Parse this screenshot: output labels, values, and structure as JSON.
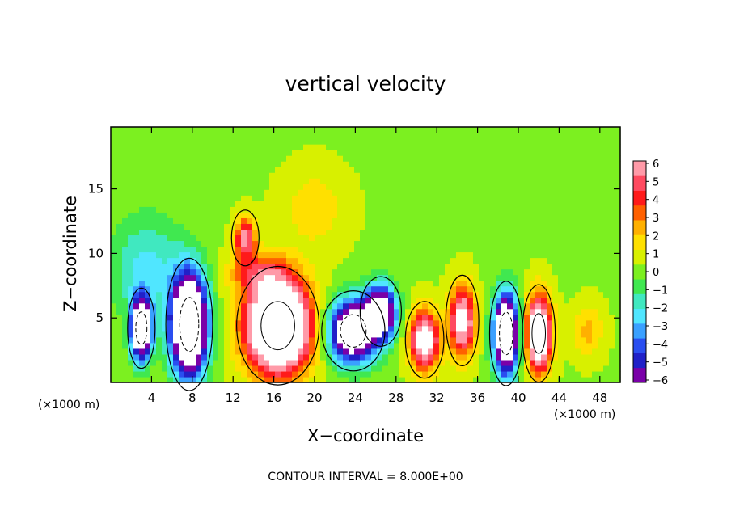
{
  "chart_data": {
    "type": "heatmap",
    "title": "vertical velocity",
    "xlabel": "X−coordinate",
    "ylabel": "Z−coordinate",
    "x_unit_left": "(×1000 m)",
    "x_unit_right": "(×1000 m)",
    "footer": "CONTOUR INTERVAL = 8.000E+00",
    "xlim": [
      0,
      50
    ],
    "ylim": [
      0,
      19.8
    ],
    "x_ticks": [
      4,
      8,
      12,
      16,
      20,
      24,
      28,
      32,
      36,
      40,
      44,
      48
    ],
    "y_ticks": [
      5,
      10,
      15
    ],
    "colorbar": {
      "ticks": [
        "6",
        "5",
        "4",
        "3",
        "2",
        "1",
        "0",
        "−1",
        "−2",
        "−3",
        "−4",
        "−5",
        "−6"
      ],
      "range": [
        -6,
        6
      ],
      "colors": [
        "#7a00a8",
        "#2020c8",
        "#2a4ef0",
        "#3aa0ff",
        "#50e6ff",
        "#40e8c0",
        "#40e850",
        "#7cf020",
        "#d8f000",
        "#ffe000",
        "#ffb000",
        "#ff6000",
        "#ff1a1a",
        "#ff4a60",
        "#ff9aa8"
      ]
    },
    "background_value": 0.3,
    "cells": [
      {
        "x": 3,
        "z": 4.2,
        "value": -12,
        "sx": 1.0,
        "sz": 2.3
      },
      {
        "x": 7.7,
        "z": 4.5,
        "value": -14,
        "sx": 1.7,
        "sz": 3.8
      },
      {
        "x": 3.5,
        "z": 9.0,
        "value": -2.5,
        "sx": 3.5,
        "sz": 4.0
      },
      {
        "x": 16.4,
        "z": 4.4,
        "value": 14,
        "sx": 3.0,
        "sz": 3.4
      },
      {
        "x": 13.2,
        "z": 11.2,
        "value": 5.5,
        "sx": 1.0,
        "sz": 1.6
      },
      {
        "x": 20.0,
        "z": 13.5,
        "value": 1.5,
        "sx": 3.0,
        "sz": 3.0
      },
      {
        "x": 23.8,
        "z": 4.0,
        "value": -11,
        "sx": 2.3,
        "sz": 2.3
      },
      {
        "x": 26.5,
        "z": 5.5,
        "value": -9,
        "sx": 1.5,
        "sz": 2.0
      },
      {
        "x": 30.8,
        "z": 3.3,
        "value": 8,
        "sx": 1.4,
        "sz": 2.2
      },
      {
        "x": 34.5,
        "z": 4.8,
        "value": 7.5,
        "sx": 1.2,
        "sz": 2.6
      },
      {
        "x": 38.8,
        "z": 3.8,
        "value": -12,
        "sx": 1.2,
        "sz": 3.0
      },
      {
        "x": 42.0,
        "z": 3.8,
        "value": 10,
        "sx": 1.2,
        "sz": 2.8
      },
      {
        "x": 46.8,
        "z": 4.0,
        "value": 2.0,
        "sx": 1.5,
        "sz": 2.0
      },
      {
        "x": 14.5,
        "z": 8.5,
        "value": 3.0,
        "sx": 3.0,
        "sz": 1.5
      }
    ]
  }
}
